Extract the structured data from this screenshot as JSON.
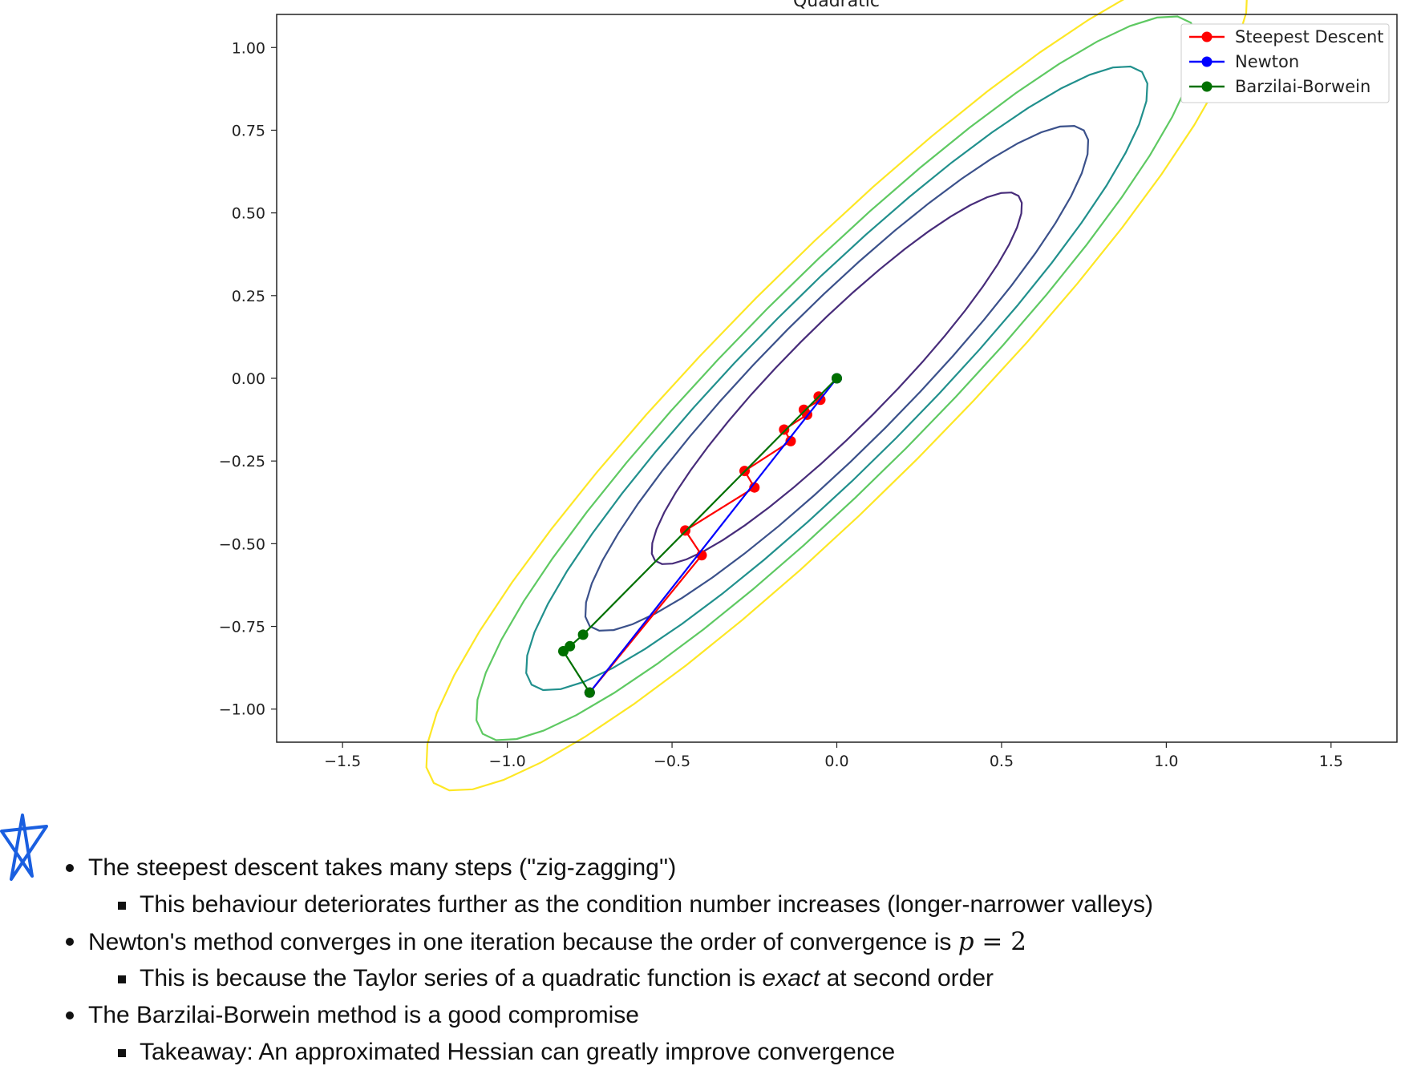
{
  "chart_data": {
    "type": "line",
    "title": "Quadratic",
    "xlabel": "",
    "ylabel": "",
    "xlim": [
      -1.7,
      1.7
    ],
    "ylim": [
      -1.1,
      1.1
    ],
    "x_ticks": [
      -1.5,
      -1.0,
      -0.5,
      0.0,
      0.5,
      1.0,
      1.5
    ],
    "x_tick_labels": [
      "−1.5",
      "−1.0",
      "−0.5",
      "0.0",
      "0.5",
      "1.0",
      "1.5"
    ],
    "y_ticks": [
      1.0,
      0.75,
      0.5,
      0.25,
      0.0,
      -0.25,
      -0.5,
      -0.75,
      -1.0
    ],
    "y_tick_labels": [
      "1.00",
      "0.75",
      "0.50",
      "0.25",
      "0.00",
      "−0.25",
      "−0.50",
      "−0.75",
      "−1.00"
    ],
    "grid": false,
    "legend_position": "top-right",
    "contours": [
      {
        "color": "#472c7a",
        "a": 0.78,
        "b": 0.155
      },
      {
        "color": "#3b518b",
        "a": 1.06,
        "b": 0.21
      },
      {
        "color": "#21908d",
        "a": 1.31,
        "b": 0.255
      },
      {
        "color": "#5ec962",
        "a": 1.52,
        "b": 0.298
      },
      {
        "color": "#fde725",
        "a": 1.73,
        "b": 0.345
      }
    ],
    "series": [
      {
        "name": "Steepest Descent",
        "color": "#ff0000",
        "x": [
          -0.75,
          -0.41,
          -0.46,
          -0.25,
          -0.28,
          -0.14,
          -0.16,
          -0.09,
          -0.1,
          -0.05,
          -0.055
        ],
        "y": [
          -0.95,
          -0.535,
          -0.46,
          -0.33,
          -0.28,
          -0.19,
          -0.155,
          -0.11,
          -0.095,
          -0.065,
          -0.055
        ]
      },
      {
        "name": "Newton",
        "color": "#0000ff",
        "x": [
          -0.75,
          0.0
        ],
        "y": [
          -0.95,
          0.0
        ]
      },
      {
        "name": "Barzilai-Borwein",
        "color": "#007000",
        "x": [
          -0.75,
          -0.83,
          -0.81,
          -0.77,
          0.0
        ],
        "y": [
          -0.95,
          -0.825,
          -0.81,
          -0.775,
          0.0
        ]
      }
    ]
  },
  "notes": {
    "b1": "The steepest descent takes many steps (''zig-zagging'')",
    "b1_sub": "This behaviour deteriorates further as the condition number increases (longer-narrower valleys)",
    "b2_pre": "Newton's method converges in one iteration because the order of convergence is ",
    "b2_math_var": "p",
    "b2_math_rest": " = 2",
    "b2_sub_pre": "This is because the Taylor series of a quadratic function is ",
    "b2_sub_em": "exact",
    "b2_sub_post": " at second order",
    "b3": "The Barzilai-Borwein method is a good compromise",
    "b3_sub": "Takeaway: An approximated Hessian can greatly improve convergence"
  },
  "icons": {
    "annotation": "star-icon",
    "annotation_color": "#1a5fe0"
  }
}
